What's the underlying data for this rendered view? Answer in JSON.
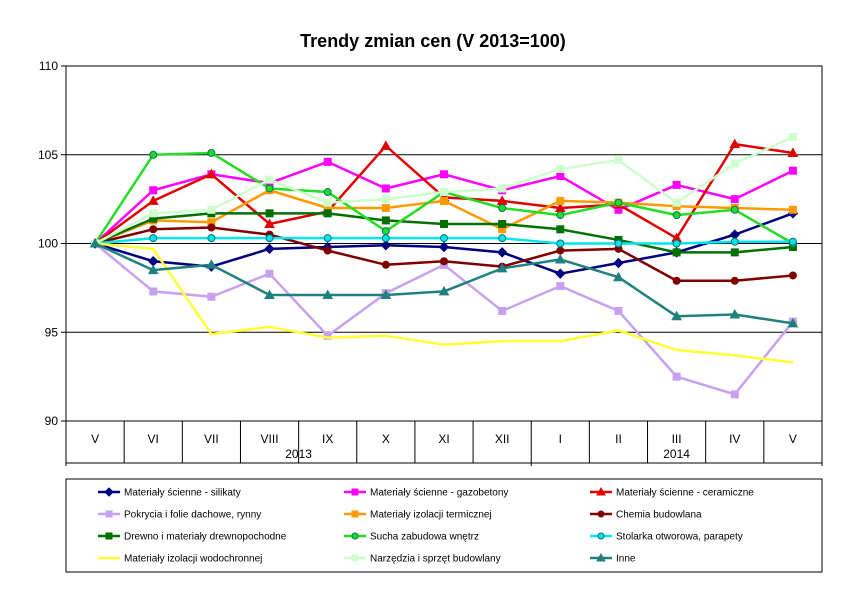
{
  "chart_data": {
    "type": "line",
    "title": "Trendy zmian cen (V 2013=100)",
    "categories": [
      "V",
      "VI",
      "VII",
      "VIII",
      "IX",
      "X",
      "XI",
      "XII",
      "I",
      "II",
      "III",
      "IV",
      "V"
    ],
    "groups": [
      {
        "label": "2013",
        "from": 0,
        "to": 7
      },
      {
        "label": "2014",
        "from": 8,
        "to": 12
      }
    ],
    "ylim": [
      90,
      110
    ],
    "yticks": [
      90,
      95,
      100,
      105,
      110
    ],
    "grid": true,
    "legend": "bottom",
    "series": [
      {
        "name": "Materiały ścienne - silikaty",
        "color": "#000080",
        "marker": "diamond",
        "values": [
          100,
          99.0,
          98.7,
          99.7,
          99.8,
          99.9,
          99.8,
          99.5,
          98.3,
          98.9,
          99.5,
          100.5,
          101.7
        ]
      },
      {
        "name": "Materiały ścienne - gazobetony",
        "color": "#ff00ff",
        "marker": "square",
        "values": [
          100,
          103.0,
          103.9,
          103.4,
          104.6,
          103.1,
          103.9,
          103.0,
          103.8,
          101.9,
          103.3,
          102.5,
          104.1
        ]
      },
      {
        "name": "Materiały ścienne - ceramiczne",
        "color": "#e00000",
        "marker": "triangle",
        "values": [
          100,
          102.4,
          103.9,
          101.1,
          101.8,
          105.5,
          102.6,
          102.4,
          102.0,
          102.2,
          100.3,
          105.6,
          105.1
        ]
      },
      {
        "name": "Pokrycia i folie dachowe, rynny",
        "color": "#c8a0f0",
        "marker": "square",
        "values": [
          100,
          97.3,
          97.0,
          98.3,
          94.8,
          97.2,
          98.8,
          96.2,
          97.6,
          96.2,
          92.5,
          91.5,
          95.6
        ]
      },
      {
        "name": "Materiały izolacji termicznej",
        "color": "#ff9900",
        "marker": "square",
        "values": [
          100,
          101.3,
          101.2,
          103.0,
          102.0,
          102.0,
          102.4,
          100.8,
          102.4,
          102.3,
          102.1,
          102.0,
          101.9
        ]
      },
      {
        "name": "Chemia budowlana",
        "color": "#800000",
        "marker": "circle",
        "values": [
          100,
          100.8,
          100.9,
          100.5,
          99.6,
          98.8,
          99.0,
          98.7,
          99.6,
          99.7,
          97.9,
          97.9,
          98.2
        ]
      },
      {
        "name": "Drewno i materiały drewnopochodne",
        "color": "#007000",
        "marker": "square",
        "values": [
          100,
          101.4,
          101.7,
          101.7,
          101.7,
          101.3,
          101.1,
          101.1,
          100.8,
          100.2,
          99.5,
          99.5,
          99.8
        ]
      },
      {
        "name": "Sucha zabudowa wnętrz",
        "color": "#22dd22",
        "marker": "circle",
        "values": [
          100,
          105.0,
          105.1,
          103.1,
          102.9,
          100.7,
          102.9,
          102.0,
          101.6,
          102.3,
          101.6,
          101.9,
          100.0
        ]
      },
      {
        "name": "Stolarka otworowa, parapety",
        "color": "#00e5ee",
        "marker": "circle",
        "values": [
          100,
          100.3,
          100.3,
          100.3,
          100.3,
          100.3,
          100.3,
          100.3,
          100.0,
          100.0,
          100.0,
          100.1,
          100.1
        ]
      },
      {
        "name": "Materiały izolacji wodochronnej",
        "color": "#ffff33",
        "marker": "none",
        "values": [
          100,
          99.7,
          94.9,
          95.3,
          94.7,
          94.8,
          94.3,
          94.5,
          94.5,
          95.1,
          94.0,
          93.7,
          93.3
        ]
      },
      {
        "name": "Narzędzia i sprzęt budowlany",
        "color": "#ccffcc",
        "marker": "square",
        "values": [
          100,
          101.7,
          101.9,
          103.6,
          102.3,
          102.5,
          102.9,
          103.1,
          104.2,
          104.7,
          102.3,
          104.5,
          106.0
        ]
      },
      {
        "name": "Inne",
        "color": "#208080",
        "marker": "triangle",
        "values": [
          100,
          98.5,
          98.8,
          97.1,
          97.1,
          97.1,
          97.3,
          98.6,
          99.1,
          98.1,
          95.9,
          96.0,
          95.5
        ]
      }
    ]
  }
}
